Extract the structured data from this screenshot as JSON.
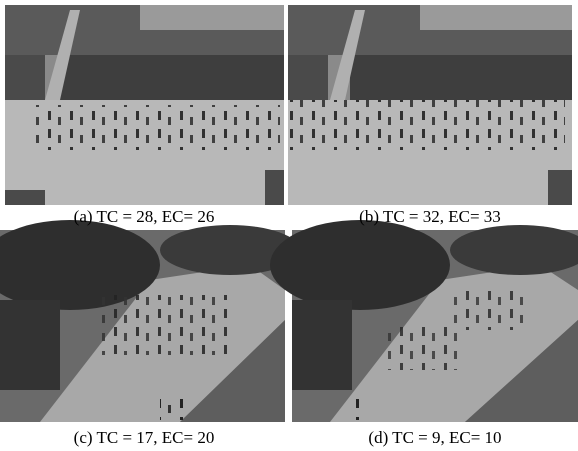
{
  "panels": [
    {
      "caption": "(a) TC = 28, EC= 26"
    },
    {
      "caption": "(b) TC = 32, EC= 33"
    },
    {
      "caption": "(c) TC = 17, EC= 20"
    },
    {
      "caption": "(d) TC = 9, EC= 10"
    }
  ]
}
